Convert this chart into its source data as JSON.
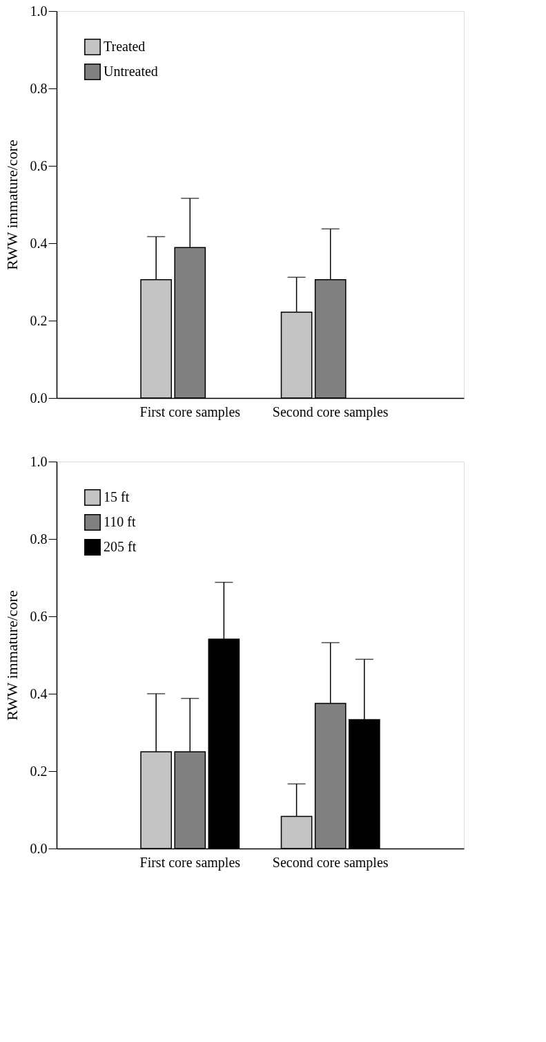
{
  "chart_data": [
    {
      "type": "bar",
      "ylabel": "RWW immature/core",
      "categories": [
        "First core samples",
        "Second core samples"
      ],
      "series": [
        {
          "name": "Treated",
          "color": "#c4c4c4",
          "values": [
            0.306,
            0.222
          ],
          "errors": [
            [
              0.306,
              0.417
            ],
            [
              0.222,
              0.312
            ]
          ]
        },
        {
          "name": "Untreated",
          "color": "#808080",
          "values": [
            0.389,
            0.306
          ],
          "errors": [
            [
              0.389,
              0.516
            ],
            [
              0.306,
              0.437
            ]
          ]
        }
      ],
      "ylim": [
        0,
        1
      ],
      "yticks": [
        {
          "value": 0,
          "label": "0.0"
        },
        {
          "value": 0.2,
          "label": "0.2"
        },
        {
          "value": 0.4,
          "label": "0.4"
        },
        {
          "value": 0.6,
          "label": "0.6"
        },
        {
          "value": 0.8,
          "label": "0.8"
        },
        {
          "value": 1,
          "label": "1.0"
        }
      ],
      "grid": false,
      "legend": "top left"
    },
    {
      "type": "bar",
      "ylabel": "RWW immature/core",
      "categories": [
        "First core samples",
        "Second core samples"
      ],
      "series": [
        {
          "name": "15 ft",
          "color": "#c4c4c4",
          "values": [
            0.25,
            0.083
          ],
          "errors": [
            [
              0.25,
              0.4
            ],
            [
              0.083,
              0.167
            ]
          ]
        },
        {
          "name": "110 ft",
          "color": "#808080",
          "values": [
            0.25,
            0.375
          ],
          "errors": [
            [
              0.25,
              0.388
            ],
            [
              0.375,
              0.532
            ]
          ]
        },
        {
          "name": "205 ft",
          "color": "#000000",
          "values": [
            0.541,
            0.333
          ],
          "errors": [
            [
              0.541,
              0.688
            ],
            [
              0.333,
              0.489
            ]
          ]
        }
      ],
      "ylim": [
        0,
        1
      ],
      "yticks": [
        {
          "value": 0,
          "label": "0.0"
        },
        {
          "value": 0.2,
          "label": "0.2"
        },
        {
          "value": 0.4,
          "label": "0.4"
        },
        {
          "value": 0.6,
          "label": "0.6"
        },
        {
          "value": 0.8,
          "label": "0.8"
        },
        {
          "value": 1,
          "label": "1.0"
        }
      ],
      "grid": false,
      "legend": "top left"
    }
  ]
}
